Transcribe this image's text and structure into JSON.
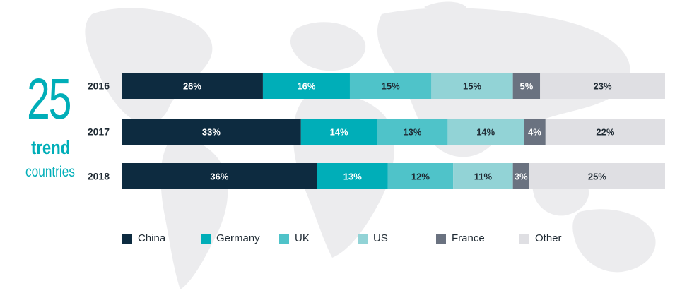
{
  "headline": {
    "number": "25",
    "word": "trend",
    "sub": "countries"
  },
  "chart_data": {
    "type": "bar",
    "orientation": "horizontal-stacked-100",
    "categories": [
      "2016",
      "2017",
      "2018"
    ],
    "series": [
      {
        "name": "China",
        "values": [
          26,
          33,
          36
        ],
        "color": "#0d2b40",
        "label_color": "#ffffff"
      },
      {
        "name": "Germany",
        "values": [
          16,
          14,
          13
        ],
        "color": "#00aeb8",
        "label_color": "#ffffff"
      },
      {
        "name": "UK",
        "values": [
          15,
          13,
          12
        ],
        "color": "#4fc3c9",
        "label_color": "#1f2a33"
      },
      {
        "name": "US",
        "values": [
          15,
          14,
          11
        ],
        "color": "#92d3d6",
        "label_color": "#1f2a33"
      },
      {
        "name": "France",
        "values": [
          5,
          4,
          3
        ],
        "color": "#6a7280",
        "label_color": "#ffffff"
      },
      {
        "name": "Other",
        "values": [
          23,
          22,
          25
        ],
        "color": "#dfdfe3",
        "label_color": "#1f2a33"
      }
    ],
    "value_suffix": "%",
    "legend": "bottom",
    "grid": false
  }
}
